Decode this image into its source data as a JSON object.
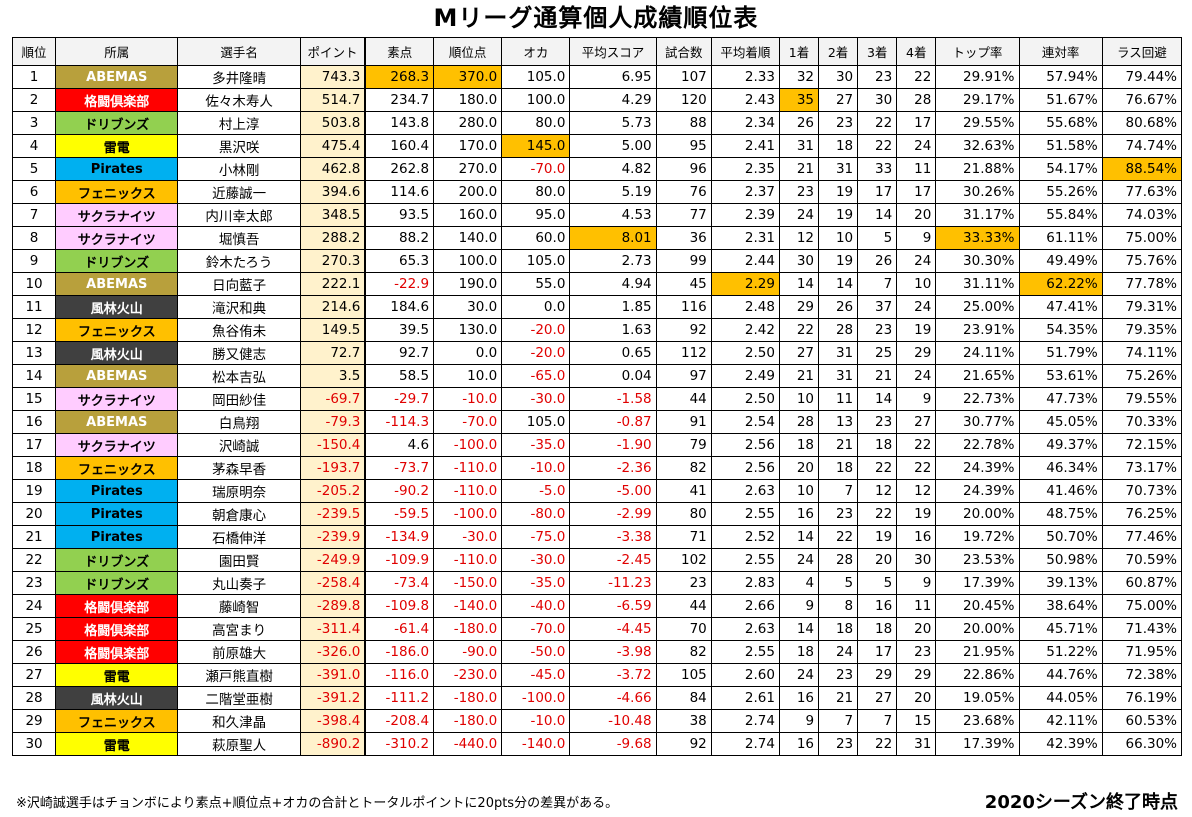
{
  "title": "Mリーグ通算個人成績順位表",
  "headers": [
    "順位",
    "所属",
    "選手名",
    "ポイント",
    "素点",
    "順位点",
    "オカ",
    "平均スコア",
    "試合数",
    "平均着順",
    "1着",
    "2着",
    "3着",
    "4着",
    "トップ率",
    "連対率",
    "ラス回避"
  ],
  "teams": {
    "ABEMAS": {
      "bg": "#b8a03c",
      "fg": "#ffffff"
    },
    "格闘倶楽部": {
      "bg": "#ff0000",
      "fg": "#ffffff"
    },
    "ドリブンズ": {
      "bg": "#92d050",
      "fg": "#000000"
    },
    "雷電": {
      "bg": "#ffff00",
      "fg": "#000000"
    },
    "Pirates": {
      "bg": "#00b0f0",
      "fg": "#000000"
    },
    "フェニックス": {
      "bg": "#ffc000",
      "fg": "#000000"
    },
    "サクラナイツ": {
      "bg": "#ffccff",
      "fg": "#000000"
    },
    "風林火山": {
      "bg": "#404040",
      "fg": "#ffffff"
    }
  },
  "highlight_color": "#ffc000",
  "rows": [
    {
      "rank": "1",
      "team": "ABEMAS",
      "name": "多井隆晴",
      "point": "743.3",
      "soten": "268.3",
      "juni": "370.0",
      "oka": "105.0",
      "avg": "6.95",
      "games": "107",
      "avg_rank": "2.33",
      "p1": "32",
      "p2": "30",
      "p3": "23",
      "p4": "22",
      "top": "29.91%",
      "rentai": "57.94%",
      "las": "79.44%",
      "hl": [
        "soten",
        "juni"
      ]
    },
    {
      "rank": "2",
      "team": "格闘倶楽部",
      "name": "佐々木寿人",
      "point": "514.7",
      "soten": "234.7",
      "juni": "180.0",
      "oka": "100.0",
      "avg": "4.29",
      "games": "120",
      "avg_rank": "2.43",
      "p1": "35",
      "p2": "27",
      "p3": "30",
      "p4": "28",
      "top": "29.17%",
      "rentai": "51.67%",
      "las": "76.67%",
      "hl": [
        "p1"
      ]
    },
    {
      "rank": "3",
      "team": "ドリブンズ",
      "name": "村上淳",
      "point": "503.8",
      "soten": "143.8",
      "juni": "280.0",
      "oka": "80.0",
      "avg": "5.73",
      "games": "88",
      "avg_rank": "2.34",
      "p1": "26",
      "p2": "23",
      "p3": "22",
      "p4": "17",
      "top": "29.55%",
      "rentai": "55.68%",
      "las": "80.68%",
      "hl": []
    },
    {
      "rank": "4",
      "team": "雷電",
      "name": "黒沢咲",
      "point": "475.4",
      "soten": "160.4",
      "juni": "170.0",
      "oka": "145.0",
      "avg": "5.00",
      "games": "95",
      "avg_rank": "2.41",
      "p1": "31",
      "p2": "18",
      "p3": "22",
      "p4": "24",
      "top": "32.63%",
      "rentai": "51.58%",
      "las": "74.74%",
      "hl": [
        "oka"
      ]
    },
    {
      "rank": "5",
      "team": "Pirates",
      "name": "小林剛",
      "point": "462.8",
      "soten": "262.8",
      "juni": "270.0",
      "oka": "-70.0",
      "avg": "4.82",
      "games": "96",
      "avg_rank": "2.35",
      "p1": "21",
      "p2": "31",
      "p3": "33",
      "p4": "11",
      "top": "21.88%",
      "rentai": "54.17%",
      "las": "88.54%",
      "hl": [
        "las"
      ]
    },
    {
      "rank": "6",
      "team": "フェニックス",
      "name": "近藤誠一",
      "point": "394.6",
      "soten": "114.6",
      "juni": "200.0",
      "oka": "80.0",
      "avg": "5.19",
      "games": "76",
      "avg_rank": "2.37",
      "p1": "23",
      "p2": "19",
      "p3": "17",
      "p4": "17",
      "top": "30.26%",
      "rentai": "55.26%",
      "las": "77.63%",
      "hl": []
    },
    {
      "rank": "7",
      "team": "サクラナイツ",
      "name": "内川幸太郎",
      "point": "348.5",
      "soten": "93.5",
      "juni": "160.0",
      "oka": "95.0",
      "avg": "4.53",
      "games": "77",
      "avg_rank": "2.39",
      "p1": "24",
      "p2": "19",
      "p3": "14",
      "p4": "20",
      "top": "31.17%",
      "rentai": "55.84%",
      "las": "74.03%",
      "hl": []
    },
    {
      "rank": "8",
      "team": "サクラナイツ",
      "name": "堀慎吾",
      "point": "288.2",
      "soten": "88.2",
      "juni": "140.0",
      "oka": "60.0",
      "avg": "8.01",
      "games": "36",
      "avg_rank": "2.31",
      "p1": "12",
      "p2": "10",
      "p3": "5",
      "p4": "9",
      "top": "33.33%",
      "rentai": "61.11%",
      "las": "75.00%",
      "hl": [
        "avg",
        "top"
      ]
    },
    {
      "rank": "9",
      "team": "ドリブンズ",
      "name": "鈴木たろう",
      "point": "270.3",
      "soten": "65.3",
      "juni": "100.0",
      "oka": "105.0",
      "avg": "2.73",
      "games": "99",
      "avg_rank": "2.44",
      "p1": "30",
      "p2": "19",
      "p3": "26",
      "p4": "24",
      "top": "30.30%",
      "rentai": "49.49%",
      "las": "75.76%",
      "hl": []
    },
    {
      "rank": "10",
      "team": "ABEMAS",
      "name": "日向藍子",
      "point": "222.1",
      "soten": "-22.9",
      "juni": "190.0",
      "oka": "55.0",
      "avg": "4.94",
      "games": "45",
      "avg_rank": "2.29",
      "p1": "14",
      "p2": "14",
      "p3": "7",
      "p4": "10",
      "top": "31.11%",
      "rentai": "62.22%",
      "las": "77.78%",
      "hl": [
        "avg_rank",
        "rentai"
      ]
    },
    {
      "rank": "11",
      "team": "風林火山",
      "name": "滝沢和典",
      "point": "214.6",
      "soten": "184.6",
      "juni": "30.0",
      "oka": "0.0",
      "avg": "1.85",
      "games": "116",
      "avg_rank": "2.48",
      "p1": "29",
      "p2": "26",
      "p3": "37",
      "p4": "24",
      "top": "25.00%",
      "rentai": "47.41%",
      "las": "79.31%",
      "hl": []
    },
    {
      "rank": "12",
      "team": "フェニックス",
      "name": "魚谷侑未",
      "point": "149.5",
      "soten": "39.5",
      "juni": "130.0",
      "oka": "-20.0",
      "avg": "1.63",
      "games": "92",
      "avg_rank": "2.42",
      "p1": "22",
      "p2": "28",
      "p3": "23",
      "p4": "19",
      "top": "23.91%",
      "rentai": "54.35%",
      "las": "79.35%",
      "hl": []
    },
    {
      "rank": "13",
      "team": "風林火山",
      "name": "勝又健志",
      "point": "72.7",
      "soten": "92.7",
      "juni": "0.0",
      "oka": "-20.0",
      "avg": "0.65",
      "games": "112",
      "avg_rank": "2.50",
      "p1": "27",
      "p2": "31",
      "p3": "25",
      "p4": "29",
      "top": "24.11%",
      "rentai": "51.79%",
      "las": "74.11%",
      "hl": []
    },
    {
      "rank": "14",
      "team": "ABEMAS",
      "name": "松本吉弘",
      "point": "3.5",
      "soten": "58.5",
      "juni": "10.0",
      "oka": "-65.0",
      "avg": "0.04",
      "games": "97",
      "avg_rank": "2.49",
      "p1": "21",
      "p2": "31",
      "p3": "21",
      "p4": "24",
      "top": "21.65%",
      "rentai": "53.61%",
      "las": "75.26%",
      "hl": []
    },
    {
      "rank": "15",
      "team": "サクラナイツ",
      "name": "岡田紗佳",
      "point": "-69.7",
      "soten": "-29.7",
      "juni": "-10.0",
      "oka": "-30.0",
      "avg": "-1.58",
      "games": "44",
      "avg_rank": "2.50",
      "p1": "10",
      "p2": "11",
      "p3": "14",
      "p4": "9",
      "top": "22.73%",
      "rentai": "47.73%",
      "las": "79.55%",
      "hl": []
    },
    {
      "rank": "16",
      "team": "ABEMAS",
      "name": "白鳥翔",
      "point": "-79.3",
      "soten": "-114.3",
      "juni": "-70.0",
      "oka": "105.0",
      "avg": "-0.87",
      "games": "91",
      "avg_rank": "2.54",
      "p1": "28",
      "p2": "13",
      "p3": "23",
      "p4": "27",
      "top": "30.77%",
      "rentai": "45.05%",
      "las": "70.33%",
      "hl": []
    },
    {
      "rank": "17",
      "team": "サクラナイツ",
      "name": "沢崎誠",
      "point": "-150.4",
      "soten": "4.6",
      "juni": "-100.0",
      "oka": "-35.0",
      "avg": "-1.90",
      "games": "79",
      "avg_rank": "2.56",
      "p1": "18",
      "p2": "21",
      "p3": "18",
      "p4": "22",
      "top": "22.78%",
      "rentai": "49.37%",
      "las": "72.15%",
      "hl": []
    },
    {
      "rank": "18",
      "team": "フェニックス",
      "name": "茅森早香",
      "point": "-193.7",
      "soten": "-73.7",
      "juni": "-110.0",
      "oka": "-10.0",
      "avg": "-2.36",
      "games": "82",
      "avg_rank": "2.56",
      "p1": "20",
      "p2": "18",
      "p3": "22",
      "p4": "22",
      "top": "24.39%",
      "rentai": "46.34%",
      "las": "73.17%",
      "hl": []
    },
    {
      "rank": "19",
      "team": "Pirates",
      "name": "瑞原明奈",
      "point": "-205.2",
      "soten": "-90.2",
      "juni": "-110.0",
      "oka": "-5.0",
      "avg": "-5.00",
      "games": "41",
      "avg_rank": "2.63",
      "p1": "10",
      "p2": "7",
      "p3": "12",
      "p4": "12",
      "top": "24.39%",
      "rentai": "41.46%",
      "las": "70.73%",
      "hl": []
    },
    {
      "rank": "20",
      "team": "Pirates",
      "name": "朝倉康心",
      "point": "-239.5",
      "soten": "-59.5",
      "juni": "-100.0",
      "oka": "-80.0",
      "avg": "-2.99",
      "games": "80",
      "avg_rank": "2.55",
      "p1": "16",
      "p2": "23",
      "p3": "22",
      "p4": "19",
      "top": "20.00%",
      "rentai": "48.75%",
      "las": "76.25%",
      "hl": []
    },
    {
      "rank": "21",
      "team": "Pirates",
      "name": "石橋伸洋",
      "point": "-239.9",
      "soten": "-134.9",
      "juni": "-30.0",
      "oka": "-75.0",
      "avg": "-3.38",
      "games": "71",
      "avg_rank": "2.52",
      "p1": "14",
      "p2": "22",
      "p3": "19",
      "p4": "16",
      "top": "19.72%",
      "rentai": "50.70%",
      "las": "77.46%",
      "hl": []
    },
    {
      "rank": "22",
      "team": "ドリブンズ",
      "name": "園田賢",
      "point": "-249.9",
      "soten": "-109.9",
      "juni": "-110.0",
      "oka": "-30.0",
      "avg": "-2.45",
      "games": "102",
      "avg_rank": "2.55",
      "p1": "24",
      "p2": "28",
      "p3": "20",
      "p4": "30",
      "top": "23.53%",
      "rentai": "50.98%",
      "las": "70.59%",
      "hl": []
    },
    {
      "rank": "23",
      "team": "ドリブンズ",
      "name": "丸山奏子",
      "point": "-258.4",
      "soten": "-73.4",
      "juni": "-150.0",
      "oka": "-35.0",
      "avg": "-11.23",
      "games": "23",
      "avg_rank": "2.83",
      "p1": "4",
      "p2": "5",
      "p3": "5",
      "p4": "9",
      "top": "17.39%",
      "rentai": "39.13%",
      "las": "60.87%",
      "hl": []
    },
    {
      "rank": "24",
      "team": "格闘倶楽部",
      "name": "藤崎智",
      "point": "-289.8",
      "soten": "-109.8",
      "juni": "-140.0",
      "oka": "-40.0",
      "avg": "-6.59",
      "games": "44",
      "avg_rank": "2.66",
      "p1": "9",
      "p2": "8",
      "p3": "16",
      "p4": "11",
      "top": "20.45%",
      "rentai": "38.64%",
      "las": "75.00%",
      "hl": []
    },
    {
      "rank": "25",
      "team": "格闘倶楽部",
      "name": "高宮まり",
      "point": "-311.4",
      "soten": "-61.4",
      "juni": "-180.0",
      "oka": "-70.0",
      "avg": "-4.45",
      "games": "70",
      "avg_rank": "2.63",
      "p1": "14",
      "p2": "18",
      "p3": "18",
      "p4": "20",
      "top": "20.00%",
      "rentai": "45.71%",
      "las": "71.43%",
      "hl": []
    },
    {
      "rank": "26",
      "team": "格闘倶楽部",
      "name": "前原雄大",
      "point": "-326.0",
      "soten": "-186.0",
      "juni": "-90.0",
      "oka": "-50.0",
      "avg": "-3.98",
      "games": "82",
      "avg_rank": "2.55",
      "p1": "18",
      "p2": "24",
      "p3": "17",
      "p4": "23",
      "top": "21.95%",
      "rentai": "51.22%",
      "las": "71.95%",
      "hl": []
    },
    {
      "rank": "27",
      "team": "雷電",
      "name": "瀬戸熊直樹",
      "point": "-391.0",
      "soten": "-116.0",
      "juni": "-230.0",
      "oka": "-45.0",
      "avg": "-3.72",
      "games": "105",
      "avg_rank": "2.60",
      "p1": "24",
      "p2": "23",
      "p3": "29",
      "p4": "29",
      "top": "22.86%",
      "rentai": "44.76%",
      "las": "72.38%",
      "hl": []
    },
    {
      "rank": "28",
      "team": "風林火山",
      "name": "二階堂亜樹",
      "point": "-391.2",
      "soten": "-111.2",
      "juni": "-180.0",
      "oka": "-100.0",
      "avg": "-4.66",
      "games": "84",
      "avg_rank": "2.61",
      "p1": "16",
      "p2": "21",
      "p3": "27",
      "p4": "20",
      "top": "19.05%",
      "rentai": "44.05%",
      "las": "76.19%",
      "hl": []
    },
    {
      "rank": "29",
      "team": "フェニックス",
      "name": "和久津晶",
      "point": "-398.4",
      "soten": "-208.4",
      "juni": "-180.0",
      "oka": "-10.0",
      "avg": "-10.48",
      "games": "38",
      "avg_rank": "2.74",
      "p1": "9",
      "p2": "7",
      "p3": "7",
      "p4": "15",
      "top": "23.68%",
      "rentai": "42.11%",
      "las": "60.53%",
      "hl": []
    },
    {
      "rank": "30",
      "team": "雷電",
      "name": "萩原聖人",
      "point": "-890.2",
      "soten": "-310.2",
      "juni": "-440.0",
      "oka": "-140.0",
      "avg": "-9.68",
      "games": "92",
      "avg_rank": "2.74",
      "p1": "16",
      "p2": "23",
      "p3": "22",
      "p4": "31",
      "top": "17.39%",
      "rentai": "42.39%",
      "las": "66.30%",
      "hl": []
    }
  ],
  "footnote": "※沢崎誠選手はチョンボにより素点+順位点+オカの合計とトータルポイントに20pts分の差異がある。",
  "status": "2020シーズン終了時点"
}
